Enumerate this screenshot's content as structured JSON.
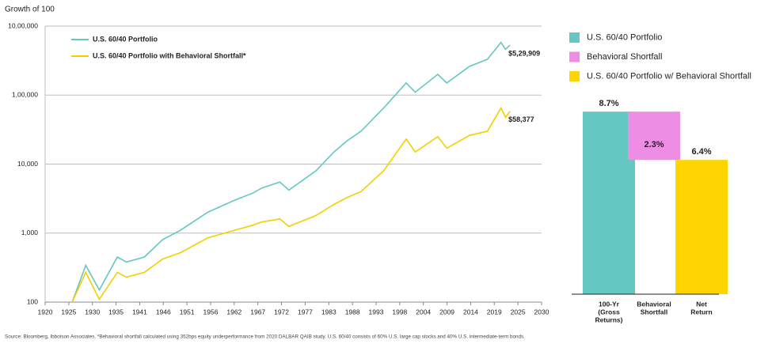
{
  "chart_data": [
    {
      "type": "line",
      "y_label": "Growth of 100",
      "log_scale": true,
      "grid": true,
      "legend": "upper left",
      "x": [
        1926,
        1929,
        1932,
        1936,
        1938,
        1942,
        1946,
        1950,
        1956,
        1962,
        1966,
        1968,
        1972,
        1974,
        1980,
        1984,
        1987,
        1990,
        1995,
        2000,
        2002,
        2007,
        2009,
        2014,
        2018,
        2021,
        2022,
        2023
      ],
      "series": [
        {
          "name": "U.S. 60/40 Portfolio",
          "color": "#63c7c2",
          "end_label": "$5,29,909",
          "values": [
            100,
            340,
            150,
            450,
            380,
            450,
            800,
            1100,
            2000,
            3000,
            3800,
            4500,
            5500,
            4200,
            8000,
            15000,
            22000,
            30000,
            65000,
            150000,
            110000,
            200000,
            150000,
            260000,
            330000,
            580000,
            460000,
            529909
          ]
        },
        {
          "name": "U.S. 60/40 Portfolio with Behavioral Shortfall*",
          "color": "#f2d000",
          "end_label": "$58,377",
          "values": [
            100,
            270,
            110,
            270,
            230,
            270,
            420,
            520,
            850,
            1100,
            1300,
            1450,
            1600,
            1250,
            1800,
            2600,
            3300,
            4000,
            8000,
            23000,
            15000,
            25000,
            17000,
            26000,
            30000,
            65000,
            48000,
            58377
          ]
        }
      ],
      "xlim": [
        1920,
        2030
      ],
      "xticks": [
        1920,
        {
          "value": 1925.24,
          "label": "1925"
        },
        {
          "value": 1930.48,
          "label": "1930"
        },
        {
          "value": 1935.71,
          "label": "1935"
        },
        {
          "value": 1940.95,
          "label": "1941"
        },
        {
          "value": 1946.19,
          "label": "1946"
        },
        {
          "value": 1951.43,
          "label": "1951"
        },
        {
          "value": 1956.67,
          "label": "1956"
        },
        {
          "value": 1961.9,
          "label": "1962"
        },
        {
          "value": 1967.14,
          "label": "1967"
        },
        {
          "value": 1972.38,
          "label": "1972"
        },
        {
          "value": 1977.62,
          "label": "1977"
        },
        {
          "value": 1982.86,
          "label": "1983"
        },
        {
          "value": 1988.1,
          "label": "1988"
        },
        {
          "value": 1993.33,
          "label": "1993"
        },
        {
          "value": 1998.57,
          "label": "1998"
        },
        {
          "value": 2003.81,
          "label": "2004"
        },
        {
          "value": 2009.05,
          "label": "2009"
        },
        {
          "value": 2014.29,
          "label": "2014"
        },
        {
          "value": 2019.52,
          "label": "2019"
        },
        {
          "value": 2024.76,
          "label": "2025"
        },
        2030
      ],
      "ylim": [
        100,
        1000000
      ],
      "yticks": [
        100,
        {
          "value": 1000,
          "label": "1,000"
        },
        {
          "value": 10000,
          "label": "10,000"
        },
        {
          "value": 100000,
          "label": "1,00,000"
        },
        {
          "value": 1000000,
          "label": "10,00,000"
        }
      ]
    },
    {
      "type": "waterfall",
      "categories": [
        [
          "100-Yr",
          "(Gross",
          "Returns)"
        ],
        [
          "Behavioral",
          "Shortfall"
        ],
        [
          "Net",
          "Return"
        ]
      ],
      "legend_names": [
        "U.S. 60/40 Portfolio",
        "Behavioral Shortfall",
        "U.S. 60/40 Portfolio w/ Behavioral Shortfall"
      ],
      "values": [
        8.7,
        2.3,
        6.4
      ],
      "value_labels": [
        "8.7%",
        "2.3%",
        "6.4%"
      ],
      "measures": [
        "total",
        "decrease",
        "total"
      ],
      "colors": [
        "#63c7c2",
        "#ee8de4",
        "#ffd400"
      ],
      "ylim": [
        0,
        9.5
      ]
    }
  ],
  "source": "Source: Bloomberg, Ibbotson Associates. *Behavioral shortfall calculated using 352bps equity underperformance from 2020 DALBAR QAIB study. U.S. 60/40 consists of 60% U.S. large cap stocks and 40% U.S. intermediate-term bonds."
}
